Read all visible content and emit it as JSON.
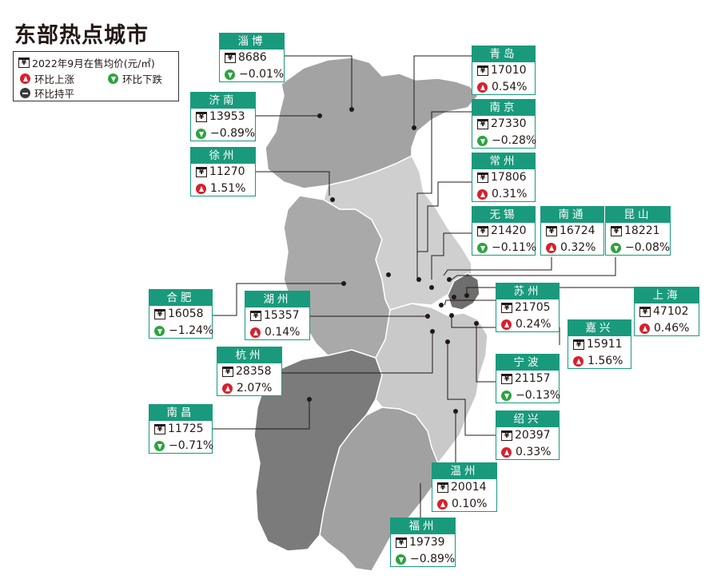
{
  "title": "东部热点城市",
  "legend": {
    "price_label": "2022年9月在售均价(元/㎡)",
    "up_label": "环比上涨",
    "down_label": "环比下跌",
    "flat_label": "环比持平"
  },
  "colors": {
    "accent": "#1a9a7c",
    "up": "#d7202d",
    "down": "#2ea23f",
    "flat": "#3a3a3a",
    "shandong": "#a3a3a3",
    "jiangsu": "#cfcfcf",
    "anhui": "#a9a9a9",
    "zhejiang": "#c9c9c9",
    "jiangxi": "#7b7b7b",
    "fujian": "#a1a1a1",
    "shanghai": "#6e6e6e"
  },
  "cities": [
    {
      "name": "淄博",
      "price": "8686",
      "change": "−0.01%",
      "trend": "down"
    },
    {
      "name": "青岛",
      "price": "17010",
      "change": "0.54%",
      "trend": "up"
    },
    {
      "name": "济南",
      "price": "13953",
      "change": "−0.89%",
      "trend": "down"
    },
    {
      "name": "南京",
      "price": "27330",
      "change": "−0.28%",
      "trend": "down"
    },
    {
      "name": "徐州",
      "price": "11270",
      "change": "1.51%",
      "trend": "up"
    },
    {
      "name": "常州",
      "price": "17806",
      "change": "0.31%",
      "trend": "up"
    },
    {
      "name": "无锡",
      "price": "21420",
      "change": "−0.11%",
      "trend": "down"
    },
    {
      "name": "南通",
      "price": "16724",
      "change": "0.32%",
      "trend": "up"
    },
    {
      "name": "昆山",
      "price": "18221",
      "change": "−0.08%",
      "trend": "down"
    },
    {
      "name": "合肥",
      "price": "16058",
      "change": "−1.24%",
      "trend": "down"
    },
    {
      "name": "湖州",
      "price": "15357",
      "change": "0.14%",
      "trend": "up"
    },
    {
      "name": "苏州",
      "price": "21705",
      "change": "0.24%",
      "trend": "up"
    },
    {
      "name": "上海",
      "price": "47102",
      "change": "0.46%",
      "trend": "up"
    },
    {
      "name": "嘉兴",
      "price": "15911",
      "change": "1.56%",
      "trend": "up"
    },
    {
      "name": "杭州",
      "price": "28358",
      "change": "2.07%",
      "trend": "up"
    },
    {
      "name": "宁波",
      "price": "21157",
      "change": "−0.13%",
      "trend": "down"
    },
    {
      "name": "南昌",
      "price": "11725",
      "change": "−0.71%",
      "trend": "down"
    },
    {
      "name": "绍兴",
      "price": "20397",
      "change": "0.33%",
      "trend": "up"
    },
    {
      "name": "温州",
      "price": "20014",
      "change": "0.10%",
      "trend": "up"
    },
    {
      "name": "福州",
      "price": "19739",
      "change": "−0.89%",
      "trend": "down"
    }
  ]
}
